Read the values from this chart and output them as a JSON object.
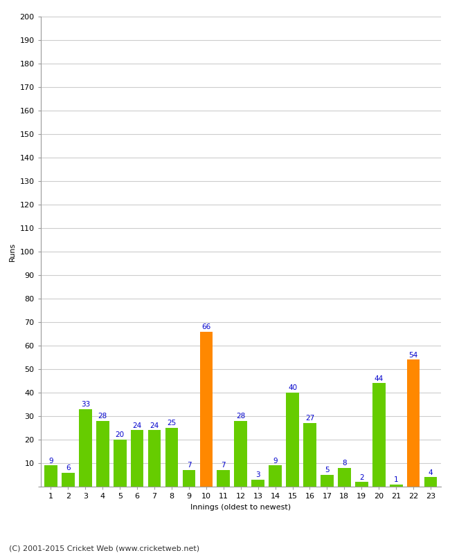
{
  "title": "",
  "xlabel": "Innings (oldest to newest)",
  "ylabel": "Runs",
  "categories": [
    1,
    2,
    3,
    4,
    5,
    6,
    7,
    8,
    9,
    10,
    11,
    12,
    13,
    14,
    15,
    16,
    17,
    18,
    19,
    20,
    21,
    22,
    23
  ],
  "values": [
    9,
    6,
    33,
    28,
    20,
    24,
    24,
    25,
    7,
    66,
    7,
    28,
    3,
    9,
    40,
    27,
    5,
    8,
    2,
    44,
    1,
    54,
    4
  ],
  "bar_colors": [
    "#66cc00",
    "#66cc00",
    "#66cc00",
    "#66cc00",
    "#66cc00",
    "#66cc00",
    "#66cc00",
    "#66cc00",
    "#66cc00",
    "#ff8800",
    "#66cc00",
    "#66cc00",
    "#66cc00",
    "#66cc00",
    "#66cc00",
    "#66cc00",
    "#66cc00",
    "#66cc00",
    "#66cc00",
    "#66cc00",
    "#66cc00",
    "#ff8800",
    "#66cc00"
  ],
  "label_color": "#0000cc",
  "background_color": "#ffffff",
  "grid_color": "#cccccc",
  "ylim": [
    0,
    200
  ],
  "yticks": [
    0,
    10,
    20,
    30,
    40,
    50,
    60,
    70,
    80,
    90,
    100,
    110,
    120,
    130,
    140,
    150,
    160,
    170,
    180,
    190,
    200
  ],
  "footer": "(C) 2001-2015 Cricket Web (www.cricketweb.net)",
  "bar_label_fontsize": 7.5,
  "tick_fontsize": 8,
  "axis_label_fontsize": 8,
  "footer_fontsize": 8
}
